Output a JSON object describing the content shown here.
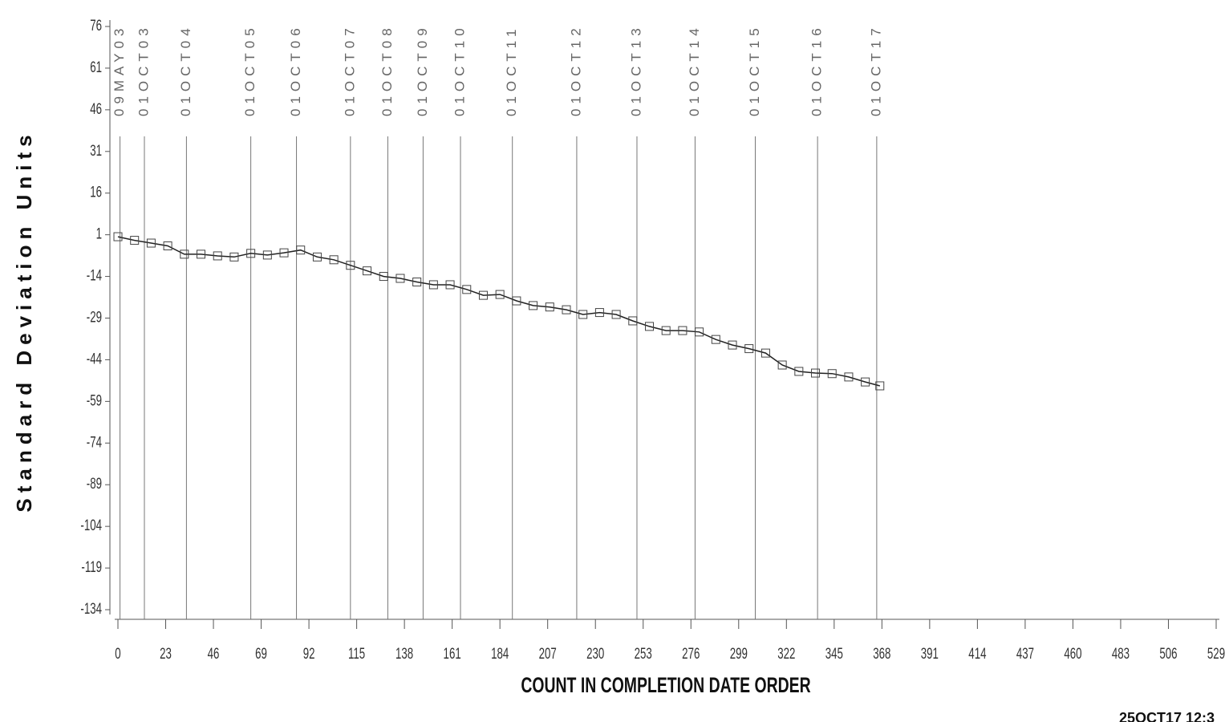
{
  "chart_data": {
    "type": "line",
    "y_label": "Standard Deviation Units",
    "x_label": "COUNT IN COMPLETION DATE ORDER",
    "footer": "25OCT17 12:3",
    "color": "#222222",
    "marker": "square",
    "x": [
      0,
      8,
      16,
      24,
      32,
      40,
      48,
      56,
      64,
      72,
      80,
      88,
      96,
      104,
      112,
      120,
      128,
      136,
      144,
      152,
      160,
      168,
      176,
      184,
      192,
      200,
      208,
      216,
      224,
      232,
      240,
      248,
      256,
      264,
      272,
      280,
      288,
      296,
      304,
      312,
      320,
      328,
      336,
      344,
      352,
      360,
      367
    ],
    "values": [
      0.3,
      -1,
      -2,
      -3,
      -6,
      -6,
      -6.6,
      -7,
      -5.7,
      -6.3,
      -5.5,
      -4.5,
      -7,
      -8,
      -10,
      -12,
      -14,
      -14.7,
      -16,
      -17,
      -17,
      -18.7,
      -20.8,
      -20.5,
      -22.8,
      -24.5,
      -25,
      -26,
      -27.7,
      -27,
      -27.7,
      -30,
      -32,
      -33.5,
      -33.5,
      -34,
      -36.7,
      -38.7,
      -40,
      -41.6,
      -45.9,
      -48.2,
      -48.8,
      -49,
      -50.2,
      -52,
      -53.4
    ],
    "xlim": [
      0,
      529
    ],
    "xticks": [
      0,
      23,
      46,
      69,
      92,
      115,
      138,
      161,
      184,
      207,
      230,
      253,
      276,
      299,
      322,
      345,
      368,
      391,
      414,
      437,
      460,
      483,
      506,
      529
    ],
    "ylim": [
      -134,
      76
    ],
    "yticks": [
      76,
      61,
      46,
      31,
      16,
      1,
      -14,
      -29,
      -44,
      -59,
      -74,
      -89,
      -104,
      -119,
      -134
    ],
    "reference_lines": [
      {
        "x": 1,
        "label": "09MAY03"
      },
      {
        "x": 12.75,
        "label": "01OCT03"
      },
      {
        "x": 33,
        "label": "01OCT04"
      },
      {
        "x": 64,
        "label": "01OCT05"
      },
      {
        "x": 86,
        "label": "01OCT06"
      },
      {
        "x": 112,
        "label": "01OCT07"
      },
      {
        "x": 130,
        "label": "01OCT08"
      },
      {
        "x": 147,
        "label": "01OCT09"
      },
      {
        "x": 165,
        "label": "01OCT10"
      },
      {
        "x": 190,
        "label": "01OCT11"
      },
      {
        "x": 221,
        "label": "01OCT12"
      },
      {
        "x": 250,
        "label": "01OCT13"
      },
      {
        "x": 278,
        "label": "01OCT14"
      },
      {
        "x": 307,
        "label": "01OCT15"
      },
      {
        "x": 337,
        "label": "01OCT16"
      },
      {
        "x": 365.5,
        "label": "01OCT17"
      }
    ]
  }
}
